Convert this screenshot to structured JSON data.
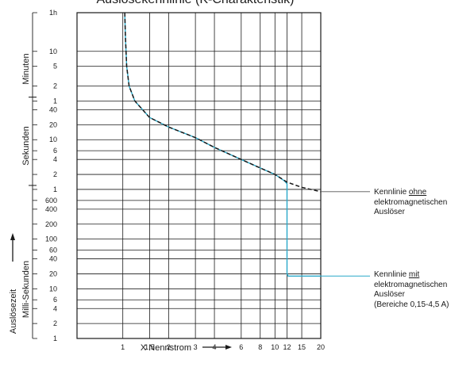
{
  "chart_data": {
    "type": "line",
    "title": "Auslösekennlinie (K-Charakteristik)",
    "xlabel": "X Nennstrom",
    "x_scale": "log",
    "xlim": [
      0.5,
      20
    ],
    "x_ticks": [
      "1",
      "1,5",
      "2",
      "3",
      "4",
      "6",
      "8",
      "10",
      "12",
      "15",
      "20"
    ],
    "y_scale": "log",
    "ylim_seconds": [
      0.001,
      3600
    ],
    "y_ticks": [
      {
        "label": "1h",
        "seconds": 3600
      },
      {
        "label": "10",
        "seconds": 600
      },
      {
        "label": "5",
        "seconds": 300
      },
      {
        "label": "2",
        "seconds": 120
      },
      {
        "label": "1",
        "seconds": 60
      },
      {
        "label": "40",
        "seconds": 40
      },
      {
        "label": "20",
        "seconds": 20
      },
      {
        "label": "10",
        "seconds": 10
      },
      {
        "label": "6",
        "seconds": 6
      },
      {
        "label": "4",
        "seconds": 4
      },
      {
        "label": "2",
        "seconds": 2
      },
      {
        "label": "1",
        "seconds": 1
      },
      {
        "label": "600",
        "seconds": 0.6
      },
      {
        "label": "400",
        "seconds": 0.4
      },
      {
        "label": "200",
        "seconds": 0.2
      },
      {
        "label": "100",
        "seconds": 0.1
      },
      {
        "label": "60",
        "seconds": 0.06
      },
      {
        "label": "40",
        "seconds": 0.04
      },
      {
        "label": "20",
        "seconds": 0.02
      },
      {
        "label": "10",
        "seconds": 0.01
      },
      {
        "label": "6",
        "seconds": 0.006
      },
      {
        "label": "4",
        "seconds": 0.004
      },
      {
        "label": "2",
        "seconds": 0.002
      },
      {
        "label": "1",
        "seconds": 0.001
      }
    ],
    "y_sections": [
      {
        "label": "Minuten"
      },
      {
        "label": "Sekunden"
      },
      {
        "label": "Milli-Sekunden"
      }
    ],
    "y_axis_caption": "Auslösezeit",
    "grid": true,
    "series": [
      {
        "name": "Kennlinie ohne elektromagnetischen Auslöser",
        "color": "#1a1a1a",
        "dash": "dashed",
        "x": [
          1.03,
          1.04,
          1.06,
          1.1,
          1.2,
          1.35,
          1.5,
          2,
          3,
          4,
          6,
          8,
          10,
          12,
          15,
          20
        ],
        "y": [
          3600,
          1200,
          300,
          120,
          60,
          40,
          28,
          18,
          11,
          7,
          4,
          2.7,
          2,
          1.4,
          1.1,
          0.9
        ]
      },
      {
        "name": "Kennlinie mit elektromagnetischen Auslöser (Bereiche 0,15-4,5 A)",
        "color": "#29a9c9",
        "dash": "solid",
        "x": [
          1.03,
          1.04,
          1.06,
          1.1,
          1.2,
          1.35,
          1.5,
          2,
          3,
          4,
          6,
          8,
          10,
          11.5,
          12,
          12,
          12.2,
          20
        ],
        "y": [
          3600,
          1200,
          300,
          120,
          60,
          40,
          28,
          18,
          11,
          7,
          4,
          2.7,
          2,
          1.5,
          1.3,
          0.02,
          0.018,
          0.018
        ]
      }
    ]
  },
  "labels": {
    "title": "Auslösekennlinie (K-Charakteristik)",
    "xlabel": "X Nennstrom",
    "section_minutes": "Minuten",
    "section_seconds": "Sekunden",
    "section_millis": "Milli-Sekunden",
    "y_caption": "Auslösezeit"
  },
  "notes": {
    "without": {
      "line1_prefix": "Kennlinie ",
      "line1_underlined": "ohne",
      "line2": "elektromagnetischen",
      "line3": "Auslöser"
    },
    "with": {
      "line1_prefix": "Kennlinie ",
      "line1_underlined": "mit",
      "line2": "elektromagnetischen",
      "line3": "Auslöser",
      "line4": "(Bereiche 0,15-4,5 A)"
    }
  }
}
